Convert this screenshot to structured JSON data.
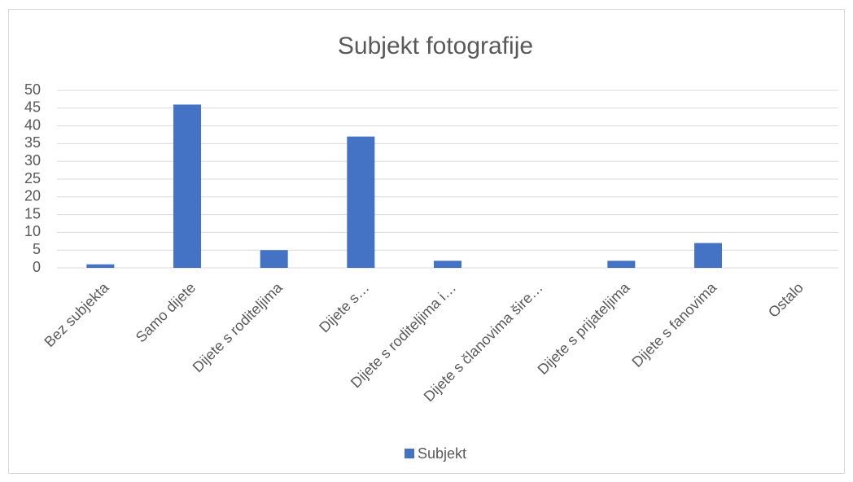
{
  "chart_data": {
    "type": "bar",
    "title": "Subjekt fotografije",
    "categories": [
      "Bez subjekta",
      "Samo dijete",
      "Dijete s roditeljima",
      "Dijete s…",
      "Dijete s roditeljima i…",
      "Dijete s članovima šire…",
      "Dijete s prijateljima",
      "Dijete s fanovima",
      "Ostalo"
    ],
    "series": [
      {
        "name": "Subjekt",
        "color": "#4472c4",
        "values": [
          1,
          46,
          5,
          37,
          2,
          0,
          2,
          7,
          0
        ]
      }
    ],
    "ylim": [
      0,
      50
    ],
    "yticks": [
      0,
      5,
      10,
      15,
      20,
      25,
      30,
      35,
      40,
      45,
      50
    ],
    "grid": true,
    "legend": "bottom"
  }
}
